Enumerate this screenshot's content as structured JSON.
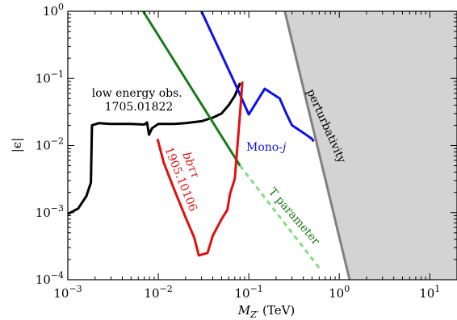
{
  "chart_data": {
    "type": "line",
    "x_scale": "log",
    "y_scale": "log",
    "xlim": [
      0.001,
      20
    ],
    "ylim": [
      0.0001,
      1
    ],
    "xlabel_main": "M",
    "xlabel_sub": "Z′",
    "xlabel_unit": " (TeV)",
    "ylabel": "|ϵ|",
    "x_ticks": [
      {
        "value": 0.001,
        "base": "10",
        "exp": "−3"
      },
      {
        "value": 0.01,
        "base": "10",
        "exp": "−2"
      },
      {
        "value": 0.1,
        "base": "10",
        "exp": "−1"
      },
      {
        "value": 1,
        "base": "10",
        "exp": "0"
      },
      {
        "value": 10,
        "base": "10",
        "exp": "1"
      }
    ],
    "y_ticks": [
      {
        "value": 0.0001,
        "base": "10",
        "exp": "−4"
      },
      {
        "value": 0.001,
        "base": "10",
        "exp": "−3"
      },
      {
        "value": 0.01,
        "base": "10",
        "exp": "−2"
      },
      {
        "value": 0.1,
        "base": "10",
        "exp": "−1"
      },
      {
        "value": 1,
        "base": "10",
        "exp": "0"
      }
    ],
    "series": [
      {
        "key": "low-energy",
        "color": "#000000",
        "dash": "",
        "points": [
          [
            0.001,
            0.00095
          ],
          [
            0.0013,
            0.00115
          ],
          [
            0.0016,
            0.00175
          ],
          [
            0.0018,
            0.0028
          ],
          [
            0.00185,
            0.02
          ],
          [
            0.0022,
            0.0215
          ],
          [
            0.003,
            0.021
          ],
          [
            0.005,
            0.021
          ],
          [
            0.007,
            0.0205
          ],
          [
            0.0075,
            0.022
          ],
          [
            0.0079,
            0.0145
          ],
          [
            0.0085,
            0.018
          ],
          [
            0.01,
            0.021
          ],
          [
            0.015,
            0.021
          ],
          [
            0.02,
            0.0215
          ],
          [
            0.03,
            0.023
          ],
          [
            0.04,
            0.026
          ],
          [
            0.05,
            0.03
          ],
          [
            0.06,
            0.04
          ],
          [
            0.07,
            0.055
          ],
          [
            0.08,
            0.085
          ]
        ]
      },
      {
        "key": "t-parameter-solid",
        "color": "#1a7a1a",
        "dash": "",
        "points": [
          [
            0.0068,
            1.0
          ],
          [
            0.08,
            0.005
          ]
        ]
      },
      {
        "key": "t-parameter-dashed",
        "color": "#80e080",
        "dash": "6,5",
        "points": [
          [
            0.08,
            0.005
          ],
          [
            0.6,
            0.00015
          ]
        ]
      },
      {
        "key": "mono-j",
        "color": "#1010ee",
        "dash": "",
        "points": [
          [
            0.03,
            1.0
          ],
          [
            0.075,
            0.07
          ],
          [
            0.1,
            0.029
          ],
          [
            0.15,
            0.07
          ],
          [
            0.22,
            0.05
          ],
          [
            0.26,
            0.03
          ],
          [
            0.3,
            0.02
          ],
          [
            0.4,
            0.0155
          ],
          [
            0.5,
            0.0125
          ],
          [
            0.52,
            0.0115
          ]
        ]
      },
      {
        "key": "bbtautau",
        "color": "#e01010",
        "dash": "",
        "points": [
          [
            0.0098,
            0.0125
          ],
          [
            0.0115,
            0.0055
          ],
          [
            0.015,
            0.0022
          ],
          [
            0.02,
            0.00085
          ],
          [
            0.025,
            0.00042
          ],
          [
            0.028,
            0.00023
          ],
          [
            0.035,
            0.00025
          ],
          [
            0.04,
            0.00045
          ],
          [
            0.05,
            0.0008
          ],
          [
            0.058,
            0.0011
          ],
          [
            0.062,
            0.0019
          ],
          [
            0.07,
            0.0032
          ],
          [
            0.075,
            0.01
          ],
          [
            0.08,
            0.03
          ],
          [
            0.085,
            0.09
          ]
        ]
      }
    ],
    "perturbativity": {
      "color": "#d3d3d3",
      "edge_color": "#808080",
      "boundary": [
        [
          0.25,
          1.0
        ],
        [
          1.3,
          0.0001
        ]
      ]
    },
    "annotations": [
      {
        "key": "low-energy-label",
        "lines": [
          "low energy obs.",
          "1705.01822"
        ],
        "color": "#000000"
      },
      {
        "key": "mono-j-label",
        "text": "Mono-",
        "italic": "j",
        "color": "#1010ee"
      },
      {
        "key": "bbtautau-label",
        "lines": [
          "bbττ",
          "1905.10106"
        ],
        "color": "#e01010"
      },
      {
        "key": "t-parameter-label",
        "text": "T parameter",
        "color": "#1a7a1a"
      },
      {
        "key": "perturbativity-label",
        "text": "perturbativity",
        "color": "#000000"
      }
    ]
  }
}
